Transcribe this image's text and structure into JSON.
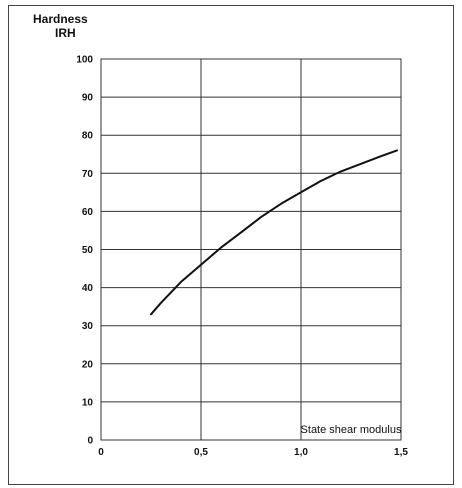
{
  "chart_data": {
    "type": "line",
    "ylabel": "Hardness",
    "ylabel_unit": "IRH",
    "xlabel": "State shear modulus",
    "xlim": [
      0,
      1.5
    ],
    "ylim": [
      0,
      100
    ],
    "x_ticks": [
      "0",
      "0,5",
      "1,0",
      "1,5"
    ],
    "y_ticks": [
      "0",
      "10",
      "20",
      "30",
      "40",
      "50",
      "60",
      "70",
      "80",
      "90",
      "100"
    ],
    "x_tick_values": [
      0,
      0.5,
      1.0,
      1.5
    ],
    "y_tick_values": [
      0,
      10,
      20,
      30,
      40,
      50,
      60,
      70,
      80,
      90,
      100
    ],
    "vertical_gridlines": [
      0.5,
      1.0
    ],
    "horizontal_gridlines": [
      10,
      20,
      30,
      40,
      50,
      60,
      70,
      80,
      90,
      100
    ],
    "grid": true,
    "series": [
      {
        "color": "#111111",
        "x": [
          0.25,
          0.3,
          0.4,
          0.5,
          0.6,
          0.7,
          0.8,
          0.9,
          1.0,
          1.1,
          1.2,
          1.3,
          1.4,
          1.48
        ],
        "y": [
          33,
          36,
          41.5,
          46,
          50.5,
          54.5,
          58.5,
          62,
          65,
          68,
          70.5,
          72.5,
          74.5,
          76
        ]
      }
    ]
  }
}
